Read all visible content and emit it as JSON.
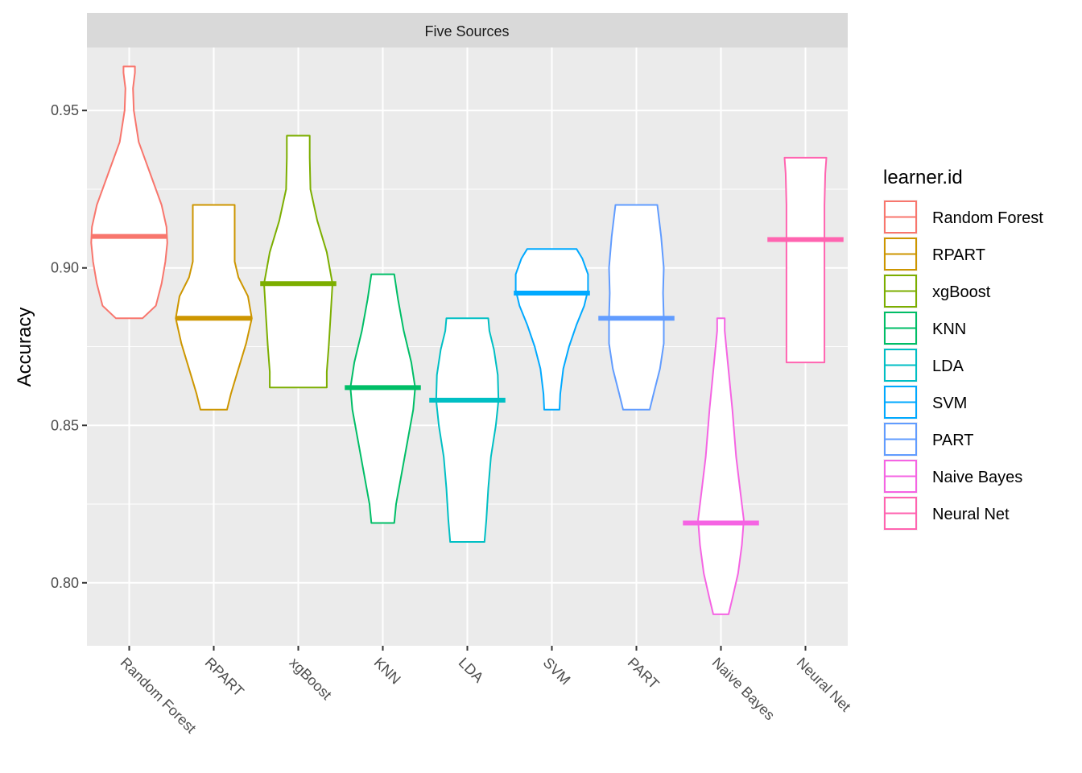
{
  "chart_data": {
    "type": "violin",
    "facet_title": "Five Sources",
    "ylabel": "Accuracy",
    "ylim": [
      0.78,
      0.97
    ],
    "yticks": [
      0.8,
      0.85,
      0.9,
      0.95
    ],
    "ytick_labels": [
      "0.80",
      "0.85",
      "0.90",
      "0.95"
    ],
    "grid": true,
    "legend_title": "learner.id",
    "legend_position": "right",
    "categories": [
      "Random Forest",
      "RPART",
      "xgBoost",
      "KNN",
      "LDA",
      "SVM",
      "PART",
      "Naive Bayes",
      "Neural Net"
    ],
    "series": [
      {
        "name": "Random Forest",
        "color": "#F8766D",
        "min": 0.884,
        "max": 0.964,
        "median": 0.91,
        "profile": [
          [
            0.884,
            0.35
          ],
          [
            0.888,
            0.7
          ],
          [
            0.895,
            0.85
          ],
          [
            0.902,
            0.95
          ],
          [
            0.908,
            1.0
          ],
          [
            0.913,
            0.98
          ],
          [
            0.92,
            0.85
          ],
          [
            0.93,
            0.55
          ],
          [
            0.94,
            0.25
          ],
          [
            0.95,
            0.12
          ],
          [
            0.957,
            0.1
          ],
          [
            0.962,
            0.15
          ],
          [
            0.964,
            0.15
          ]
        ]
      },
      {
        "name": "RPART",
        "color": "#CD9600",
        "min": 0.855,
        "max": 0.92,
        "median": 0.884,
        "profile": [
          [
            0.855,
            0.35
          ],
          [
            0.86,
            0.45
          ],
          [
            0.868,
            0.65
          ],
          [
            0.876,
            0.85
          ],
          [
            0.884,
            1.0
          ],
          [
            0.891,
            0.9
          ],
          [
            0.897,
            0.65
          ],
          [
            0.902,
            0.55
          ],
          [
            0.91,
            0.55
          ],
          [
            0.92,
            0.55
          ]
        ]
      },
      {
        "name": "xgBoost",
        "color": "#7CAE00",
        "min": 0.862,
        "max": 0.942,
        "median": 0.895,
        "profile": [
          [
            0.862,
            0.75
          ],
          [
            0.867,
            0.75
          ],
          [
            0.875,
            0.8
          ],
          [
            0.885,
            0.85
          ],
          [
            0.895,
            0.9
          ],
          [
            0.905,
            0.75
          ],
          [
            0.915,
            0.5
          ],
          [
            0.925,
            0.32
          ],
          [
            0.935,
            0.3
          ],
          [
            0.942,
            0.3
          ]
        ]
      },
      {
        "name": "KNN",
        "color": "#00BE67",
        "min": 0.819,
        "max": 0.898,
        "median": 0.862,
        "profile": [
          [
            0.819,
            0.3
          ],
          [
            0.825,
            0.35
          ],
          [
            0.835,
            0.5
          ],
          [
            0.845,
            0.65
          ],
          [
            0.855,
            0.8
          ],
          [
            0.862,
            0.85
          ],
          [
            0.87,
            0.75
          ],
          [
            0.88,
            0.55
          ],
          [
            0.89,
            0.4
          ],
          [
            0.898,
            0.3
          ]
        ]
      },
      {
        "name": "LDA",
        "color": "#00BFC4",
        "min": 0.813,
        "max": 0.884,
        "median": 0.858,
        "profile": [
          [
            0.813,
            0.45
          ],
          [
            0.82,
            0.5
          ],
          [
            0.83,
            0.55
          ],
          [
            0.84,
            0.62
          ],
          [
            0.85,
            0.75
          ],
          [
            0.858,
            0.82
          ],
          [
            0.866,
            0.8
          ],
          [
            0.874,
            0.7
          ],
          [
            0.88,
            0.58
          ],
          [
            0.884,
            0.55
          ]
        ]
      },
      {
        "name": "SVM",
        "color": "#00A9FF",
        "min": 0.855,
        "max": 0.906,
        "median": 0.892,
        "profile": [
          [
            0.855,
            0.2
          ],
          [
            0.86,
            0.22
          ],
          [
            0.868,
            0.3
          ],
          [
            0.875,
            0.45
          ],
          [
            0.882,
            0.65
          ],
          [
            0.888,
            0.85
          ],
          [
            0.893,
            0.95
          ],
          [
            0.898,
            0.95
          ],
          [
            0.903,
            0.8
          ],
          [
            0.906,
            0.65
          ]
        ]
      },
      {
        "name": "PART",
        "color": "#619CFF",
        "min": 0.855,
        "max": 0.92,
        "median": 0.884,
        "profile": [
          [
            0.855,
            0.35
          ],
          [
            0.86,
            0.45
          ],
          [
            0.868,
            0.62
          ],
          [
            0.876,
            0.72
          ],
          [
            0.884,
            0.72
          ],
          [
            0.892,
            0.7
          ],
          [
            0.9,
            0.72
          ],
          [
            0.91,
            0.65
          ],
          [
            0.92,
            0.55
          ]
        ]
      },
      {
        "name": "Naive Bayes",
        "color": "#F564E3",
        "min": 0.79,
        "max": 0.884,
        "median": 0.819,
        "profile": [
          [
            0.79,
            0.2
          ],
          [
            0.795,
            0.3
          ],
          [
            0.803,
            0.45
          ],
          [
            0.812,
            0.55
          ],
          [
            0.82,
            0.6
          ],
          [
            0.83,
            0.5
          ],
          [
            0.84,
            0.4
          ],
          [
            0.855,
            0.3
          ],
          [
            0.87,
            0.18
          ],
          [
            0.88,
            0.1
          ],
          [
            0.884,
            0.1
          ]
        ]
      },
      {
        "name": "Neural Net",
        "color": "#FF64B0",
        "min": 0.87,
        "max": 0.935,
        "median": 0.909,
        "profile": [
          [
            0.87,
            0.5
          ],
          [
            0.88,
            0.5
          ],
          [
            0.89,
            0.5
          ],
          [
            0.9,
            0.5
          ],
          [
            0.91,
            0.5
          ],
          [
            0.92,
            0.5
          ],
          [
            0.93,
            0.52
          ],
          [
            0.935,
            0.55
          ]
        ]
      }
    ]
  }
}
